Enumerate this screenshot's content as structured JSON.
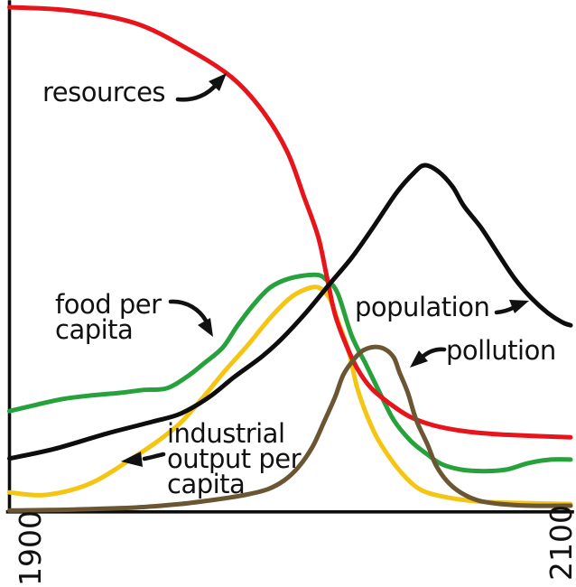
{
  "figure": {
    "background": "#ffffff",
    "axis_color": "#0c0c0c",
    "text_color": "#111111"
  },
  "chart_data": {
    "type": "line",
    "title": "",
    "xlabel": "",
    "ylabel": "",
    "x_range": [
      1900,
      2100
    ],
    "y_range": [
      0,
      100
    ],
    "y_scale_note": "unitless normalized level (no y-axis ticks shown)",
    "grid": false,
    "legend_position": "none (inline annotated labels with arrows)",
    "x_ticks": [
      "1900",
      "2100"
    ],
    "series": [
      {
        "id": "food-per-capita",
        "name": "food per capita",
        "color": "#26a13c",
        "points": [
          [
            1900,
            20
          ],
          [
            1910,
            21.3
          ],
          [
            1919,
            22.4
          ],
          [
            1929,
            23.1
          ],
          [
            1939,
            23.6
          ],
          [
            1948,
            24.2
          ],
          [
            1956,
            24.5
          ],
          [
            1963,
            26.7
          ],
          [
            1969,
            29.3
          ],
          [
            1976,
            32.6
          ],
          [
            1981,
            36.7
          ],
          [
            1987,
            41.1
          ],
          [
            1993,
            44.5
          ],
          [
            2000,
            46.3
          ],
          [
            2009,
            47
          ],
          [
            2013,
            46
          ],
          [
            2017,
            43.3
          ],
          [
            2022,
            34.9
          ],
          [
            2027,
            29.3
          ],
          [
            2032,
            23.6
          ],
          [
            2037,
            18.2
          ],
          [
            2043,
            14.1
          ],
          [
            2049,
            11.4
          ],
          [
            2054,
            9.5
          ],
          [
            2061,
            8.4
          ],
          [
            2069,
            8.1
          ],
          [
            2077,
            8.4
          ],
          [
            2085,
            9.7
          ],
          [
            2093,
            10.4
          ],
          [
            2100,
            10.4
          ]
        ]
      },
      {
        "id": "industrial-output-per-capita",
        "name": "industrial output per capita",
        "color": "#f5c513",
        "points": [
          [
            1900,
            3.9
          ],
          [
            1913,
            3.4
          ],
          [
            1929,
            5.7
          ],
          [
            1945,
            11.1
          ],
          [
            1953,
            14.1
          ],
          [
            1961,
            17.7
          ],
          [
            1969,
            22.7
          ],
          [
            1977,
            28.1
          ],
          [
            1985,
            33.1
          ],
          [
            1993,
            38.5
          ],
          [
            2000,
            42.4
          ],
          [
            2005,
            44
          ],
          [
            2010,
            44.5
          ],
          [
            2014,
            42.4
          ],
          [
            2017,
            37.9
          ],
          [
            2021,
            31.7
          ],
          [
            2024,
            24.5
          ],
          [
            2029,
            17
          ],
          [
            2034,
            12
          ],
          [
            2041,
            7
          ],
          [
            2047,
            4.3
          ],
          [
            2056,
            2.9
          ],
          [
            2067,
            2.1
          ],
          [
            2080,
            1.8
          ],
          [
            2100,
            1.6
          ]
        ]
      },
      {
        "id": "resources",
        "name": "resources",
        "color": "#e8141b",
        "points": [
          [
            1900,
            100
          ],
          [
            1922,
            99.3
          ],
          [
            1945,
            96.8
          ],
          [
            1964,
            91.6
          ],
          [
            1979,
            86.2
          ],
          [
            1990,
            79.6
          ],
          [
            1999,
            71.4
          ],
          [
            2005,
            62.4
          ],
          [
            2010,
            54.6
          ],
          [
            2013,
            47
          ],
          [
            2016,
            39.2
          ],
          [
            2020,
            33.1
          ],
          [
            2024,
            28.4
          ],
          [
            2029,
            24.5
          ],
          [
            2036,
            21.3
          ],
          [
            2043,
            18.8
          ],
          [
            2051,
            17.2
          ],
          [
            2061,
            16.1
          ],
          [
            2074,
            15.4
          ],
          [
            2090,
            15
          ],
          [
            2100,
            14.8
          ]
        ]
      },
      {
        "id": "population",
        "name": "population",
        "color": "#0d0d0d",
        "points": [
          [
            1900,
            10.6
          ],
          [
            1916,
            12.5
          ],
          [
            1935,
            15.6
          ],
          [
            1951,
            17.9
          ],
          [
            1961,
            19.5
          ],
          [
            1971,
            22.7
          ],
          [
            1980,
            26.7
          ],
          [
            1990,
            30.8
          ],
          [
            1997,
            34.3
          ],
          [
            2006,
            39.7
          ],
          [
            2014,
            45.1
          ],
          [
            2022,
            50.4
          ],
          [
            2030,
            56.7
          ],
          [
            2038,
            63.3
          ],
          [
            2044,
            67.1
          ],
          [
            2048,
            68.7
          ],
          [
            2053,
            67.4
          ],
          [
            2058,
            64.4
          ],
          [
            2062,
            60.6
          ],
          [
            2068,
            56.4
          ],
          [
            2074,
            51.3
          ],
          [
            2080,
            46.3
          ],
          [
            2086,
            42.4
          ],
          [
            2092,
            39.4
          ],
          [
            2097,
            37.6
          ],
          [
            2100,
            37
          ]
        ]
      },
      {
        "id": "pollution",
        "name": "pollution",
        "color": "#6a5632",
        "points": [
          [
            1900,
            0.3
          ],
          [
            1923,
            0.5
          ],
          [
            1945,
            0.9
          ],
          [
            1961,
            1.6
          ],
          [
            1974,
            2.5
          ],
          [
            1984,
            3.4
          ],
          [
            1992,
            4.5
          ],
          [
            1998,
            6.3
          ],
          [
            2003,
            8.9
          ],
          [
            2008,
            12.9
          ],
          [
            2012,
            17.7
          ],
          [
            2016,
            22.7
          ],
          [
            2019,
            27.2
          ],
          [
            2023,
            30.4
          ],
          [
            2026,
            32
          ],
          [
            2030,
            32.7
          ],
          [
            2034,
            32.2
          ],
          [
            2037,
            30.6
          ],
          [
            2039,
            27.7
          ],
          [
            2042,
            23.6
          ],
          [
            2045,
            18.2
          ],
          [
            2049,
            13.4
          ],
          [
            2052,
            9.3
          ],
          [
            2056,
            6.1
          ],
          [
            2061,
            3.8
          ],
          [
            2067,
            2.3
          ],
          [
            2075,
            1.6
          ],
          [
            2086,
            1.25
          ],
          [
            2100,
            1.25
          ]
        ]
      }
    ],
    "annotations": [
      {
        "id": "resources",
        "text": "resources",
        "arrow_points_to": "resources curve"
      },
      {
        "id": "food-per-capita",
        "text": "food per\ncapita",
        "arrow_points_to": "food per capita curve"
      },
      {
        "id": "population",
        "text": "population",
        "arrow_points_to": "population curve"
      },
      {
        "id": "pollution",
        "text": "pollution",
        "arrow_points_to": "pollution curve"
      },
      {
        "id": "industrial-output-per-capita",
        "text": "industrial\noutput per\ncapita",
        "arrow_points_to": "industrial output per capita curve"
      }
    ]
  }
}
